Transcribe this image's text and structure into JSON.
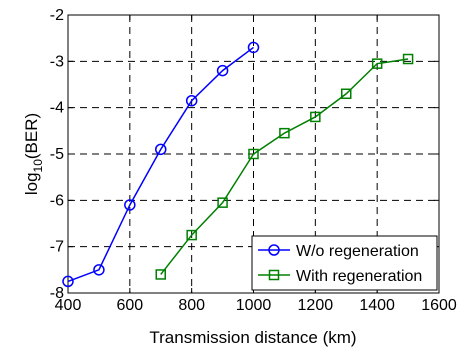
{
  "chart_data": {
    "type": "line",
    "xlabel": "Transmission distance (km)",
    "ylabel_prefix": "log",
    "ylabel_sub": "10",
    "ylabel_suffix": "(BER)",
    "xlim": [
      400,
      1600
    ],
    "ylim": [
      -8,
      -2
    ],
    "xticks": [
      400,
      600,
      800,
      1000,
      1200,
      1400,
      1600
    ],
    "yticks": [
      -2,
      -3,
      -4,
      -5,
      -6,
      -7,
      -8
    ],
    "grid": true,
    "legend_position": "bottom-right",
    "series": [
      {
        "name": "W/o regeneration",
        "color": "#0000ff",
        "marker": "circle",
        "x": [
          400,
          500,
          600,
          700,
          800,
          900,
          1000
        ],
        "y": [
          -7.75,
          -7.5,
          -6.1,
          -4.9,
          -3.85,
          -3.2,
          -2.7
        ]
      },
      {
        "name": "With regeneration",
        "color": "#008000",
        "marker": "square",
        "x": [
          700,
          800,
          900,
          1000,
          1100,
          1200,
          1300,
          1400,
          1500
        ],
        "y": [
          -7.6,
          -6.75,
          -6.05,
          -5.0,
          -4.55,
          -4.2,
          -3.7,
          -3.05,
          -2.95
        ]
      }
    ]
  }
}
